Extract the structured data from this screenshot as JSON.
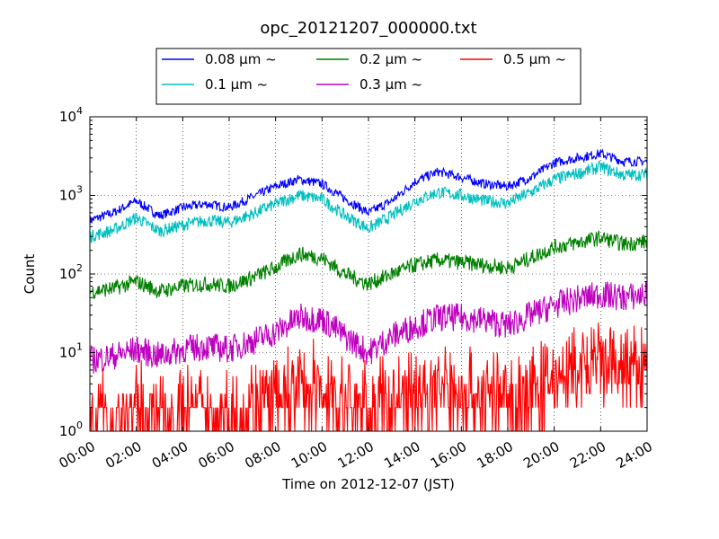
{
  "chart_data": {
    "type": "line",
    "title": "opc_20121207_000000.txt",
    "xlabel": "Time on 2012-12-07 (JST)",
    "ylabel": "Count",
    "yscale": "log",
    "ylim": [
      1,
      10000
    ],
    "xlim": [
      "00:00",
      "24:00"
    ],
    "grid": true,
    "legend_position": "top-center",
    "x_tick_labels": [
      "00:00",
      "02:00",
      "04:00",
      "06:00",
      "08:00",
      "10:00",
      "12:00",
      "14:00",
      "16:00",
      "18:00",
      "20:00",
      "22:00",
      "24:00"
    ],
    "y_tick_labels": [
      {
        "base": "10",
        "exp": "0"
      },
      {
        "base": "10",
        "exp": "1"
      },
      {
        "base": "10",
        "exp": "2"
      },
      {
        "base": "10",
        "exp": "3"
      },
      {
        "base": "10",
        "exp": "4"
      }
    ],
    "x": [
      "00:00",
      "01:00",
      "02:00",
      "03:00",
      "04:00",
      "05:00",
      "06:00",
      "07:00",
      "08:00",
      "09:00",
      "10:00",
      "11:00",
      "12:00",
      "13:00",
      "14:00",
      "15:00",
      "16:00",
      "17:00",
      "18:00",
      "19:00",
      "20:00",
      "21:00",
      "22:00",
      "23:00",
      "24:00"
    ],
    "series": [
      {
        "name": "0.08 μm ~",
        "color": "#0000ff",
        "values": [
          480,
          600,
          850,
          550,
          700,
          780,
          700,
          950,
          1300,
          1600,
          1400,
          900,
          600,
          850,
          1500,
          2000,
          1700,
          1400,
          1300,
          1700,
          2600,
          3000,
          3400,
          2700,
          2700
        ]
      },
      {
        "name": "0.1 μm ~",
        "color": "#00bfbf",
        "values": [
          300,
          360,
          520,
          350,
          420,
          480,
          450,
          580,
          780,
          1000,
          900,
          550,
          380,
          550,
          850,
          1100,
          1000,
          850,
          800,
          1100,
          1600,
          1900,
          2300,
          1800,
          1850
        ]
      },
      {
        "name": "0.2 μm ~",
        "color": "#008000",
        "values": [
          60,
          65,
          80,
          60,
          70,
          75,
          70,
          90,
          120,
          180,
          160,
          100,
          75,
          100,
          130,
          150,
          140,
          130,
          120,
          160,
          220,
          250,
          290,
          240,
          260
        ]
      },
      {
        "name": "0.3 μm ~",
        "color": "#bf00bf",
        "values": [
          8,
          9,
          11,
          9,
          11,
          12,
          11,
          14,
          18,
          28,
          27,
          16,
          10,
          16,
          22,
          28,
          28,
          26,
          22,
          30,
          40,
          48,
          55,
          50,
          55
        ]
      },
      {
        "name": "0.5 μm ~",
        "color": "#ff0000",
        "values": [
          1.5,
          1.6,
          2,
          1.6,
          2,
          2,
          1.8,
          2.2,
          2.5,
          3.5,
          3.5,
          2.3,
          2,
          2.5,
          3,
          3.5,
          3.5,
          3,
          2.5,
          3.2,
          5,
          6,
          7,
          6,
          6.5
        ]
      }
    ]
  }
}
